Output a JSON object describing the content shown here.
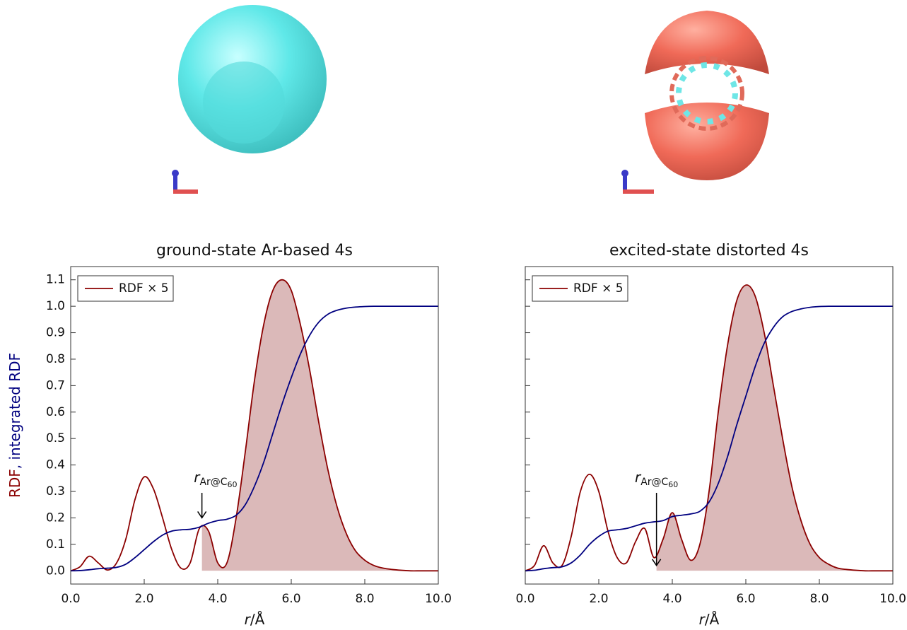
{
  "chart_data": [
    {
      "type": "line",
      "title": "ground-state Ar-based 4s",
      "xlabel_var": "r",
      "xlabel_unit": "/Å",
      "ylabel_parts": [
        "RDF",
        ", integrated RDF"
      ],
      "x": [
        0,
        0.25,
        0.5,
        0.75,
        1,
        1.25,
        1.5,
        1.75,
        2,
        2.25,
        2.5,
        2.75,
        3,
        3.25,
        3.5,
        3.75,
        4,
        4.25,
        4.5,
        4.75,
        5,
        5.25,
        5.5,
        5.75,
        6,
        6.25,
        6.5,
        6.75,
        7,
        7.25,
        7.5,
        7.75,
        8,
        8.25,
        8.5,
        8.75,
        9,
        9.25,
        9.5,
        9.75,
        10
      ],
      "series": [
        {
          "name": "RDF × 5",
          "color": "#8b0000",
          "values": [
            0,
            0.015,
            0.055,
            0.03,
            0.003,
            0.03,
            0.12,
            0.27,
            0.355,
            0.31,
            0.2,
            0.08,
            0.01,
            0.03,
            0.16,
            0.15,
            0.03,
            0.03,
            0.2,
            0.45,
            0.72,
            0.93,
            1.06,
            1.1,
            1.06,
            0.93,
            0.76,
            0.56,
            0.38,
            0.24,
            0.14,
            0.075,
            0.04,
            0.02,
            0.01,
            0.005,
            0.002,
            0,
            0,
            0,
            0
          ]
        },
        {
          "color": "#000080",
          "values": [
            0,
            0.001,
            0.004,
            0.008,
            0.01,
            0.013,
            0.025,
            0.05,
            0.08,
            0.11,
            0.135,
            0.15,
            0.155,
            0.157,
            0.165,
            0.18,
            0.19,
            0.195,
            0.21,
            0.25,
            0.32,
            0.41,
            0.52,
            0.63,
            0.73,
            0.82,
            0.89,
            0.94,
            0.97,
            0.985,
            0.993,
            0.997,
            0.999,
            1,
            1,
            1,
            1,
            1,
            1,
            1,
            1
          ]
        }
      ],
      "shade_from": 3.57,
      "annotation": {
        "text": "r",
        "sub": "Ar@C",
        "subsub": "60",
        "x": 3.57,
        "y": 0.2,
        "label_x": 3.94
      },
      "xlim": [
        0,
        10
      ],
      "ylim": [
        -0.05,
        1.15
      ],
      "xticks": [
        {
          "value": 0,
          "label": "0.0"
        },
        {
          "value": 2,
          "label": "2.0"
        },
        {
          "value": 4,
          "label": "4.0"
        },
        {
          "value": 6,
          "label": "6.0"
        },
        {
          "value": 8,
          "label": "8.0"
        },
        {
          "value": 10,
          "label": "10.0"
        }
      ],
      "yticks": [
        {
          "value": 0,
          "label": "0.0"
        },
        {
          "value": 0.1,
          "label": "0.1"
        },
        {
          "value": 0.2,
          "label": "0.2"
        },
        {
          "value": 0.3,
          "label": "0.3"
        },
        {
          "value": 0.4,
          "label": "0.4"
        },
        {
          "value": 0.5,
          "label": "0.5"
        },
        {
          "value": 0.6,
          "label": "0.6"
        },
        {
          "value": 0.7,
          "label": "0.7"
        },
        {
          "value": 0.8,
          "label": "0.8"
        },
        {
          "value": 0.9,
          "label": "0.9"
        },
        {
          "value": 1.0,
          "label": "1.0"
        },
        {
          "value": 1.1,
          "label": "1.1"
        }
      ],
      "show_ytick_labels": true,
      "legend": "upper left"
    },
    {
      "type": "line",
      "title": "excited-state distorted 4s",
      "xlabel_var": "r",
      "xlabel_unit": "/Å",
      "x": [
        0,
        0.25,
        0.5,
        0.75,
        1,
        1.25,
        1.5,
        1.75,
        2,
        2.25,
        2.5,
        2.75,
        3,
        3.25,
        3.5,
        3.75,
        4,
        4.25,
        4.5,
        4.75,
        5,
        5.25,
        5.5,
        5.75,
        6,
        6.25,
        6.5,
        6.75,
        7,
        7.25,
        7.5,
        7.75,
        8,
        8.25,
        8.5,
        8.75,
        9,
        9.25,
        9.5,
        9.75,
        10
      ],
      "series": [
        {
          "name": "RDF × 5",
          "color": "#8b0000",
          "values": [
            0,
            0.02,
            0.095,
            0.03,
            0.02,
            0.13,
            0.3,
            0.365,
            0.3,
            0.15,
            0.05,
            0.03,
            0.11,
            0.16,
            0.05,
            0.12,
            0.22,
            0.12,
            0.04,
            0.1,
            0.3,
            0.6,
            0.85,
            1.02,
            1.08,
            1.04,
            0.9,
            0.7,
            0.5,
            0.32,
            0.19,
            0.1,
            0.05,
            0.025,
            0.01,
            0.005,
            0.002,
            0,
            0,
            0,
            0
          ]
        },
        {
          "color": "#000080",
          "values": [
            0,
            0.002,
            0.008,
            0.012,
            0.015,
            0.03,
            0.06,
            0.1,
            0.13,
            0.15,
            0.155,
            0.16,
            0.17,
            0.18,
            0.185,
            0.19,
            0.205,
            0.21,
            0.215,
            0.225,
            0.26,
            0.33,
            0.43,
            0.55,
            0.66,
            0.77,
            0.86,
            0.92,
            0.96,
            0.98,
            0.99,
            0.996,
            0.999,
            1,
            1,
            1,
            1,
            1,
            1,
            1,
            1
          ]
        }
      ],
      "shade_from": 3.57,
      "annotation": {
        "text": "r",
        "sub": "Ar@C",
        "subsub": "60",
        "x": 3.57,
        "y": 0.02,
        "label_x": 3.57
      },
      "xlim": [
        0,
        10
      ],
      "ylim": [
        -0.05,
        1.15
      ],
      "xticks": [
        {
          "value": 0,
          "label": "0.0"
        },
        {
          "value": 2,
          "label": "2.0"
        },
        {
          "value": 4,
          "label": "4.0"
        },
        {
          "value": 6,
          "label": "6.0"
        },
        {
          "value": 8,
          "label": "8.0"
        },
        {
          "value": 10,
          "label": "10.0"
        }
      ],
      "yticks": [
        0,
        0.1,
        0.2,
        0.3,
        0.4,
        0.5,
        0.6,
        0.7,
        0.8,
        0.9,
        1.0,
        1.1
      ],
      "show_ytick_labels": false,
      "legend": "upper left"
    }
  ]
}
